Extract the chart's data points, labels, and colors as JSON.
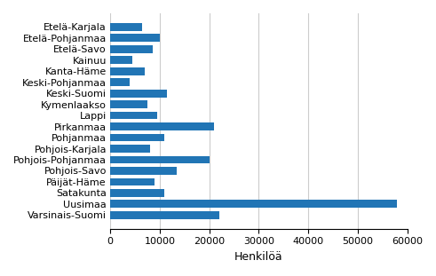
{
  "categories": [
    "Etelä-Karjala",
    "Etelä-Pohjanmaa",
    "Etelä-Savo",
    "Kainuu",
    "Kanta-Häme",
    "Keski-Pohjanmaa",
    "Keski-Suomi",
    "Kymenlaakso",
    "Lappi",
    "Pirkanmaa",
    "Pohjanmaa",
    "Pohjois-Karjala",
    "Pohjois-Pohjanmaa",
    "Pohjois-Savo",
    "Päijät-Häme",
    "Satakunta",
    "Uusimaa",
    "Varsinais-Suomi"
  ],
  "values": [
    6500,
    10000,
    8500,
    4500,
    7000,
    4000,
    11500,
    7500,
    9500,
    21000,
    11000,
    8000,
    20000,
    13500,
    9000,
    11000,
    58000,
    22000
  ],
  "bar_color": "#2175b5",
  "xlabel": "Henkilöä",
  "xlim": [
    0,
    60000
  ],
  "xticks": [
    0,
    10000,
    20000,
    30000,
    40000,
    50000,
    60000
  ],
  "background_color": "#ffffff",
  "grid_color": "#cccccc",
  "tick_fontsize": 8.0,
  "label_fontsize": 9
}
